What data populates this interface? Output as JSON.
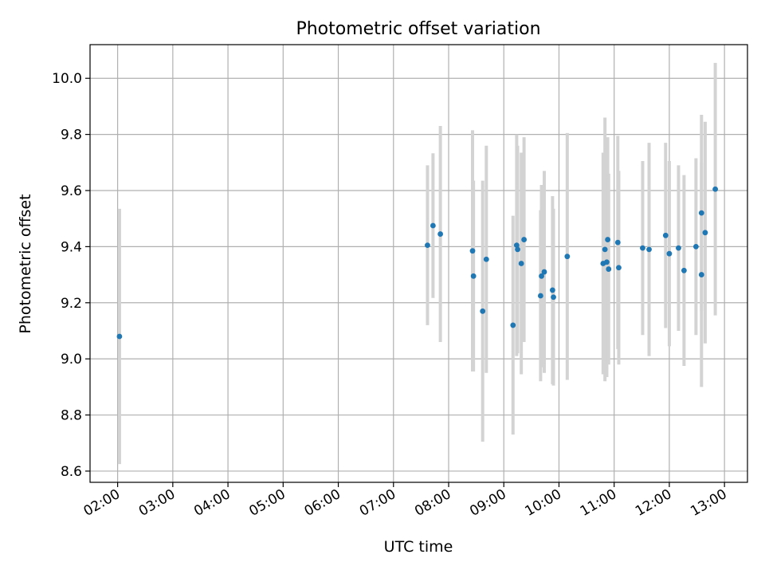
{
  "chart_data": {
    "type": "scatter",
    "title": "Photometric offset variation",
    "xlabel": "UTC time",
    "ylabel": "Photometric offset",
    "x_is_time": true,
    "xlim": [
      "01:30",
      "13:25"
    ],
    "ylim": [
      8.56,
      10.12
    ],
    "x_ticks": [
      "02:00",
      "03:00",
      "04:00",
      "05:00",
      "06:00",
      "07:00",
      "08:00",
      "09:00",
      "10:00",
      "11:00",
      "12:00",
      "13:00"
    ],
    "y_ticks": [
      8.6,
      8.8,
      9.0,
      9.2,
      9.4,
      9.6,
      9.8,
      10.0
    ],
    "grid": true,
    "marker_color": "#1f77b4",
    "errorbar_color": "#d3d3d3",
    "points": [
      {
        "t": "02:02",
        "y": 9.08,
        "err": 0.455
      },
      {
        "t": "07:37",
        "y": 9.405,
        "err": 0.285
      },
      {
        "t": "07:43",
        "y": 9.475,
        "err": 0.258
      },
      {
        "t": "07:51",
        "y": 9.445,
        "err": 0.385
      },
      {
        "t": "08:26",
        "y": 9.385,
        "err": 0.43
      },
      {
        "t": "08:27",
        "y": 9.295,
        "err": 0.34
      },
      {
        "t": "08:37",
        "y": 9.17,
        "err": 0.465
      },
      {
        "t": "08:41",
        "y": 9.355,
        "err": 0.405
      },
      {
        "t": "09:10",
        "y": 9.12,
        "err": 0.39
      },
      {
        "t": "09:14",
        "y": 9.405,
        "err": 0.395
      },
      {
        "t": "09:15",
        "y": 9.39,
        "err": 0.37
      },
      {
        "t": "09:19",
        "y": 9.34,
        "err": 0.395
      },
      {
        "t": "09:22",
        "y": 9.425,
        "err": 0.365
      },
      {
        "t": "09:40",
        "y": 9.225,
        "err": 0.305
      },
      {
        "t": "09:41",
        "y": 9.295,
        "err": 0.325
      },
      {
        "t": "09:44",
        "y": 9.31,
        "err": 0.36
      },
      {
        "t": "09:53",
        "y": 9.245,
        "err": 0.335
      },
      {
        "t": "09:54",
        "y": 9.22,
        "err": 0.315
      },
      {
        "t": "10:09",
        "y": 9.365,
        "err": 0.44
      },
      {
        "t": "10:48",
        "y": 9.34,
        "err": 0.395
      },
      {
        "t": "10:50",
        "y": 9.39,
        "err": 0.47
      },
      {
        "t": "10:52",
        "y": 9.345,
        "err": 0.41
      },
      {
        "t": "10:53",
        "y": 9.425,
        "err": 0.365
      },
      {
        "t": "10:54",
        "y": 9.32,
        "err": 0.34
      },
      {
        "t": "11:04",
        "y": 9.415,
        "err": 0.38
      },
      {
        "t": "11:05",
        "y": 9.325,
        "err": 0.345
      },
      {
        "t": "11:31",
        "y": 9.395,
        "err": 0.31
      },
      {
        "t": "11:38",
        "y": 9.39,
        "err": 0.38
      },
      {
        "t": "11:56",
        "y": 9.44,
        "err": 0.33
      },
      {
        "t": "12:00",
        "y": 9.375,
        "err": 0.33
      },
      {
        "t": "12:10",
        "y": 9.395,
        "err": 0.295
      },
      {
        "t": "12:16",
        "y": 9.315,
        "err": 0.34
      },
      {
        "t": "12:29",
        "y": 9.4,
        "err": 0.315
      },
      {
        "t": "12:35",
        "y": 9.52,
        "err": 0.35
      },
      {
        "t": "12:35",
        "y": 9.3,
        "err": 0.4
      },
      {
        "t": "12:39",
        "y": 9.45,
        "err": 0.395
      },
      {
        "t": "12:50",
        "y": 9.605,
        "err": 0.45
      }
    ]
  }
}
